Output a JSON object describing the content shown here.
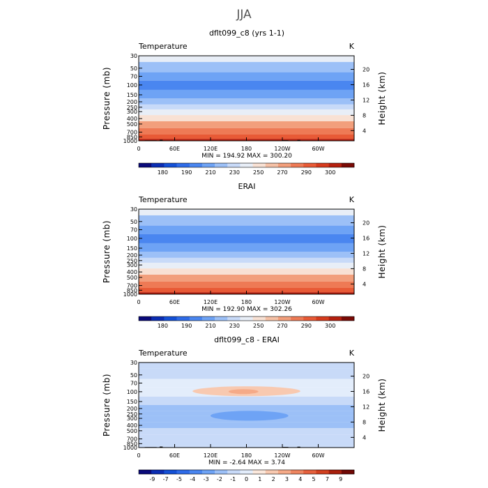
{
  "figure_title": "JJA",
  "colors": {
    "temperature": [
      "#0a0a7a",
      "#0b2db3",
      "#1450d6",
      "#2e6be8",
      "#4a86f0",
      "#6ea3f5",
      "#9cc0f7",
      "#c8daf8",
      "#e8eef7",
      "#f8e1d4",
      "#f5c1a6",
      "#f29f7c",
      "#ee7a55",
      "#e85a36",
      "#d63b1d",
      "#b5200f",
      "#7a0a05"
    ],
    "difference": [
      "#0a0a7a",
      "#0b2db3",
      "#1450d6",
      "#2e6be8",
      "#4a86f0",
      "#6ea3f5",
      "#9cc0f7",
      "#c8daf8",
      "#e3edfb",
      "#fbe8dc",
      "#f8c9b0",
      "#f5aa88",
      "#ee8560",
      "#e5603d",
      "#d1401f",
      "#a8200d",
      "#700805"
    ]
  },
  "chart_data": [
    {
      "type": "heatmap",
      "title": "dflt099_c8 (yrs 1-1)",
      "left_label": "Temperature",
      "right_label": "K",
      "xlabel": "",
      "ylabel": "Pressure (mb)",
      "y2label": "Height (km)",
      "x_ticks": [
        "0",
        "60E",
        "120E",
        "180",
        "120W",
        "60W"
      ],
      "y_ticks": [
        "30",
        "50",
        "70",
        "100",
        "150",
        "200",
        "250",
        "300",
        "400",
        "500",
        "700",
        "850",
        "1000"
      ],
      "y2_ticks": [
        "20",
        "16",
        "12",
        "8",
        "4"
      ],
      "stats": "MIN =  194.92   MAX =  300.20",
      "colorbar_labels": [
        "180",
        "190",
        "210",
        "230",
        "250",
        "270",
        "290",
        "300"
      ],
      "levels": [
        {
          "p": 30,
          "v": 232
        },
        {
          "p": 50,
          "v": 219
        },
        {
          "p": 70,
          "v": 207
        },
        {
          "p": 100,
          "v": 197
        },
        {
          "p": 150,
          "v": 207
        },
        {
          "p": 200,
          "v": 219
        },
        {
          "p": 250,
          "v": 227
        },
        {
          "p": 300,
          "v": 236
        },
        {
          "p": 400,
          "v": 250
        },
        {
          "p": 500,
          "v": 262
        },
        {
          "p": 700,
          "v": 278
        },
        {
          "p": 850,
          "v": 288
        },
        {
          "p": 1000,
          "v": 298
        }
      ],
      "topography": true
    },
    {
      "type": "heatmap",
      "title": "ERAI",
      "left_label": "Temperature",
      "right_label": "K",
      "xlabel": "",
      "ylabel": "Pressure (mb)",
      "y2label": "Height (km)",
      "x_ticks": [
        "0",
        "60E",
        "120E",
        "180",
        "120W",
        "60W"
      ],
      "y_ticks": [
        "30",
        "50",
        "70",
        "100",
        "150",
        "200",
        "250",
        "300",
        "400",
        "500",
        "700",
        "850",
        "1000"
      ],
      "y2_ticks": [
        "20",
        "16",
        "12",
        "8",
        "4"
      ],
      "stats": "MIN =  192.90   MAX =  302.26",
      "colorbar_labels": [
        "180",
        "190",
        "210",
        "230",
        "250",
        "270",
        "290",
        "300"
      ],
      "levels": [
        {
          "p": 30,
          "v": 231
        },
        {
          "p": 50,
          "v": 219
        },
        {
          "p": 70,
          "v": 206
        },
        {
          "p": 100,
          "v": 196
        },
        {
          "p": 150,
          "v": 206
        },
        {
          "p": 200,
          "v": 218
        },
        {
          "p": 250,
          "v": 227
        },
        {
          "p": 300,
          "v": 236
        },
        {
          "p": 400,
          "v": 250
        },
        {
          "p": 500,
          "v": 262
        },
        {
          "p": 700,
          "v": 278
        },
        {
          "p": 850,
          "v": 289
        },
        {
          "p": 1000,
          "v": 299
        }
      ],
      "topography": false
    },
    {
      "type": "heatmap",
      "title": "dflt099_c8 - ERAI",
      "left_label": "Temperature",
      "right_label": "K",
      "xlabel": "",
      "ylabel": "Pressure (mb)",
      "y2label": "Height (km)",
      "x_ticks": [
        "0",
        "60E",
        "120E",
        "180",
        "120W",
        "60W"
      ],
      "y_ticks": [
        "30",
        "50",
        "70",
        "100",
        "150",
        "200",
        "250",
        "300",
        "400",
        "500",
        "700",
        "850",
        "1000"
      ],
      "y2_ticks": [
        "20",
        "16",
        "12",
        "8",
        "4"
      ],
      "stats": "MIN =   -2.64   MAX =    3.74",
      "colorbar_labels": [
        "-9",
        "-7",
        "-5",
        "-4",
        "-3",
        "-2",
        "-1",
        "0",
        "1",
        "2",
        "3",
        "4",
        "5",
        "7",
        "9"
      ],
      "levels": [
        {
          "p": 30,
          "v": -0.5
        },
        {
          "p": 50,
          "v": -0.5
        },
        {
          "p": 70,
          "v": 0.3
        },
        {
          "p": 100,
          "v": 0.6
        },
        {
          "p": 150,
          "v": -0.6
        },
        {
          "p": 200,
          "v": -1.2
        },
        {
          "p": 250,
          "v": -1.4
        },
        {
          "p": 300,
          "v": -1.5
        },
        {
          "p": 400,
          "v": -1.3
        },
        {
          "p": 500,
          "v": -0.8
        },
        {
          "p": 700,
          "v": -0.5
        },
        {
          "p": 850,
          "v": -0.4
        },
        {
          "p": 1000,
          "v": -0.3
        }
      ],
      "features": [
        {
          "lon_from": 90,
          "lon_to": 270,
          "p_from": 80,
          "p_to": 120,
          "v": 2.5
        },
        {
          "lon_from": 150,
          "lon_to": 200,
          "p_from": 90,
          "p_to": 110,
          "v": 3.5
        },
        {
          "lon_from": 120,
          "lon_to": 250,
          "p_from": 220,
          "p_to": 330,
          "v": -2.4
        }
      ],
      "topography": true
    }
  ]
}
